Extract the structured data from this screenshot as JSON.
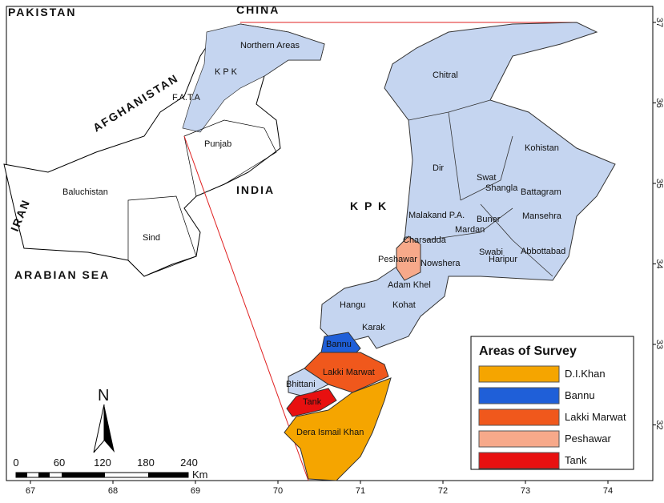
{
  "inset": {
    "labels": [
      "PAKISTAN",
      "CHINA",
      "AFGHANISTAN",
      "Northern Areas",
      "K P K",
      "F.A.T.A",
      "Punjab",
      "INDIA",
      "IRAN",
      "Baluchistan",
      "Sind",
      "ARABIAN SEA"
    ]
  },
  "main_label": "K P K",
  "districts": [
    "Chitral",
    "Kohistan",
    "Swat",
    "Dir",
    "Shangla",
    "Battagram",
    "Malakand P.A.",
    "Buner",
    "Mansehra",
    "Mardan",
    "Charsadda",
    "Swabi",
    "Abbottabad",
    "Peshawar",
    "Nowshera",
    "Haripur",
    "Adam Khel",
    "Hangu",
    "Kohat",
    "Karak",
    "Bannu",
    "Lakki Marwat",
    "Bhittani",
    "Tank",
    "Dera Ismail Khan"
  ],
  "legend": {
    "title": "Areas of Survey",
    "items": [
      {
        "label": "D.I.Khan",
        "color": "#f5a500"
      },
      {
        "label": "Bannu",
        "color": "#1f5fd8"
      },
      {
        "label": "Lakki Marwat",
        "color": "#f0581c"
      },
      {
        "label": "Peshawar",
        "color": "#f7a98a"
      },
      {
        "label": "Tank",
        "color": "#e81010"
      }
    ]
  },
  "scale_bar": {
    "north": "N",
    "ticks": [
      "0",
      "60",
      "120",
      "180",
      "240"
    ],
    "unit": "Km"
  },
  "longitude_ticks": [
    "67",
    "68",
    "69",
    "70",
    "71",
    "72",
    "73",
    "74"
  ],
  "latitude_ticks": [
    "37",
    "36",
    "35",
    "34",
    "33",
    "32"
  ]
}
